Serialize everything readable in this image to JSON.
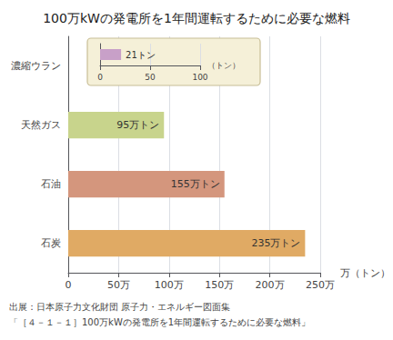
{
  "chart_data": [
    {
      "type": "bar",
      "orientation": "horizontal",
      "title": "100万kWの発電所を1年間運転するために必要な燃料",
      "categories": [
        "濃縮ウラン",
        "天然ガス",
        "石油",
        "石炭"
      ],
      "values": [
        21,
        950000,
        1550000,
        2350000
      ],
      "colors": [
        "#c8a0c8",
        "#c8d48c",
        "#d4967d",
        "#e0aa64"
      ],
      "data_labels": true,
      "value_labels": [
        null,
        "95万トン",
        "155万トン",
        "235万トン"
      ],
      "xlabel": "万（トン）",
      "xlim": [
        0,
        2500000
      ],
      "xticks": [
        0,
        {
          "value": 500000,
          "label": "50万"
        },
        {
          "value": 1000000,
          "label": "100万"
        },
        {
          "value": 1500000,
          "label": "150万"
        },
        {
          "value": 2000000,
          "label": "200万"
        },
        {
          "value": 2500000,
          "label": "250万"
        }
      ],
      "grid": true,
      "annotations": [
        "出展：日本原子力文化財団 原子力・エネルギー図面集",
        "「［４－１－１］100万kWの発電所を1年間運転するために必要な燃料」"
      ]
    },
    {
      "type": "bar",
      "orientation": "horizontal",
      "categories": [
        null
      ],
      "values": [
        21
      ],
      "color": "#c8a0c8",
      "data_labels": true,
      "value_labels": [
        "21トン"
      ],
      "xlabel": "（トン）",
      "xlim": [
        0,
        100
      ],
      "xticks": [
        0,
        50,
        100
      ],
      "grid": true
    }
  ]
}
